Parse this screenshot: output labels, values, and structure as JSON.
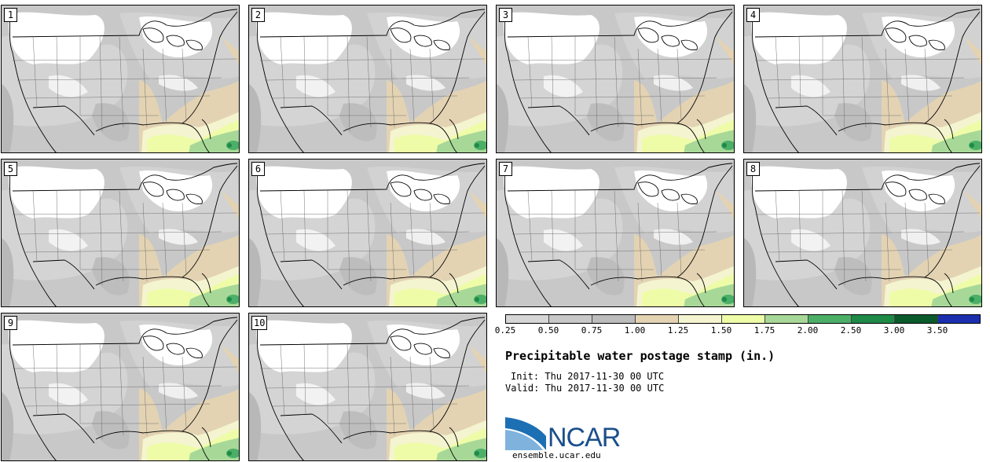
{
  "stamps": [
    {
      "label": "1"
    },
    {
      "label": "2"
    },
    {
      "label": "3"
    },
    {
      "label": "4"
    },
    {
      "label": "5"
    },
    {
      "label": "6"
    },
    {
      "label": "7"
    },
    {
      "label": "8"
    },
    {
      "label": "9"
    },
    {
      "label": "10"
    }
  ],
  "colorbar": {
    "colors": [
      "#d6d6d6",
      "#c8c8c8",
      "#bcbcbc",
      "#e3d3b3",
      "#f4f4d0",
      "#eefca8",
      "#a8d898",
      "#4caf68",
      "#1f8a47",
      "#0b5a2c",
      "#1b2fae"
    ],
    "ticks": [
      "0.25",
      "0.50",
      "0.75",
      "1.00",
      "1.25",
      "1.50",
      "1.75",
      "2.00",
      "2.50",
      "3.00",
      "3.50"
    ]
  },
  "title": "Precipitable water postage stamp (in.)",
  "init_line": "Init: Thu 2017-11-30 00 UTC",
  "valid_line": "Valid: Thu 2017-11-30 00 UTC",
  "logo": {
    "text": "NCAR",
    "website": "ensemble.ucar.edu"
  }
}
